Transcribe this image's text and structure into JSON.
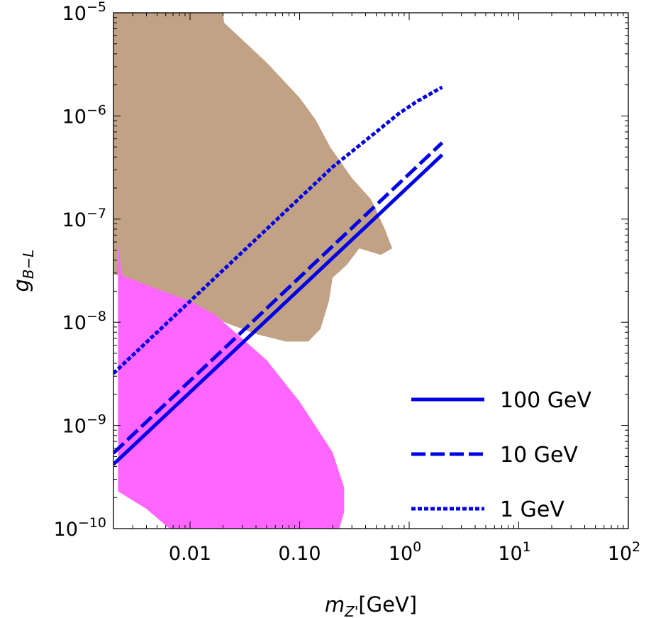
{
  "chart_data": {
    "type": "line",
    "x_scale": "log",
    "y_scale": "log",
    "xlim": [
      0.002,
      100
    ],
    "ylim": [
      1e-10,
      1e-05
    ],
    "xlabel": {
      "base": "m",
      "subscript": "Z'",
      "unit": "[GeV]"
    },
    "ylabel": {
      "base": "g",
      "subscript": "B−L"
    },
    "x_ticks": [
      {
        "value": 0.01,
        "label": "0.01"
      },
      {
        "value": 0.1,
        "label": "0.10"
      },
      {
        "value": 1,
        "base": "10",
        "exp": "0"
      },
      {
        "value": 10,
        "base": "10",
        "exp": "1"
      },
      {
        "value": 100,
        "base": "10",
        "exp": "2"
      }
    ],
    "y_ticks": [
      {
        "value": 1e-10,
        "base": "10",
        "exp": "−10"
      },
      {
        "value": 1e-09,
        "base": "10",
        "exp": "−9"
      },
      {
        "value": 1e-08,
        "base": "10",
        "exp": "−8"
      },
      {
        "value": 1e-07,
        "base": "10",
        "exp": "−7"
      },
      {
        "value": 1e-06,
        "base": "10",
        "exp": "−6"
      },
      {
        "value": 1e-05,
        "base": "10",
        "exp": "−5"
      }
    ],
    "regions": [
      {
        "id": "tan",
        "color": "#c2a284",
        "points": [
          [
            0.002,
            1e-05
          ],
          [
            0.0199,
            1e-05
          ],
          [
            0.0205,
            8e-06
          ],
          [
            0.05,
            3.3e-06
          ],
          [
            0.1,
            1.5e-06
          ],
          [
            0.14,
            9.2e-07
          ],
          [
            0.19,
            5e-07
          ],
          [
            0.3,
            2.5e-07
          ],
          [
            0.45,
            1.55e-07
          ],
          [
            0.6,
            8e-08
          ],
          [
            0.7,
            5.2e-08
          ],
          [
            0.55,
            4.5e-08
          ],
          [
            0.35,
            5.2e-08
          ],
          [
            0.27,
            3.6e-08
          ],
          [
            0.2,
            2.7e-08
          ],
          [
            0.185,
            1.6e-08
          ],
          [
            0.155,
            8.6e-09
          ],
          [
            0.12,
            6.5e-09
          ],
          [
            0.075,
            6.5e-09
          ],
          [
            0.04,
            7.7e-09
          ],
          [
            0.021,
            9.9e-09
          ],
          [
            0.01,
            1.45e-08
          ],
          [
            0.005,
            2.05e-08
          ],
          [
            0.002,
            2.95e-08
          ]
        ]
      },
      {
        "id": "magenta",
        "color": "#ff66ff",
        "points": [
          [
            0.0022,
            5.8e-08
          ],
          [
            0.0024,
            2.85e-08
          ],
          [
            0.005,
            2.1e-08
          ],
          [
            0.01,
            1.6e-08
          ],
          [
            0.017,
            1.18e-08
          ],
          [
            0.05,
            4.3e-09
          ],
          [
            0.1,
            1.7e-09
          ],
          [
            0.2,
            5.5e-10
          ],
          [
            0.255,
            2.5e-10
          ],
          [
            0.255,
            1.45e-10
          ],
          [
            0.23,
            1e-10
          ],
          [
            0.0065,
            1e-10
          ],
          [
            0.004,
            1.55e-10
          ],
          [
            0.0022,
            2.3e-10
          ]
        ]
      }
    ],
    "series": [
      {
        "name": "100 GeV",
        "style": "solid",
        "color": "#0000e6",
        "x": [
          0.002,
          2.0
        ],
        "y": [
          4.2e-10,
          4.2e-07
        ]
      },
      {
        "name": "10 GeV",
        "style": "dashed",
        "color": "#0000e6",
        "x": [
          0.002,
          2.0
        ],
        "y": [
          5.4e-10,
          5.5e-07
        ]
      },
      {
        "name": "1 GeV",
        "style": "dotted",
        "color": "#0000e6",
        "x": [
          0.002,
          0.02,
          0.2,
          0.5,
          0.8,
          1.2,
          2.0
        ],
        "y": [
          3.2e-09,
          3.2e-08,
          3.2e-07,
          7e-07,
          1.05e-06,
          1.4e-06,
          1.9e-06
        ]
      }
    ],
    "legend": {
      "position": "bottom-right"
    },
    "grid": false
  }
}
